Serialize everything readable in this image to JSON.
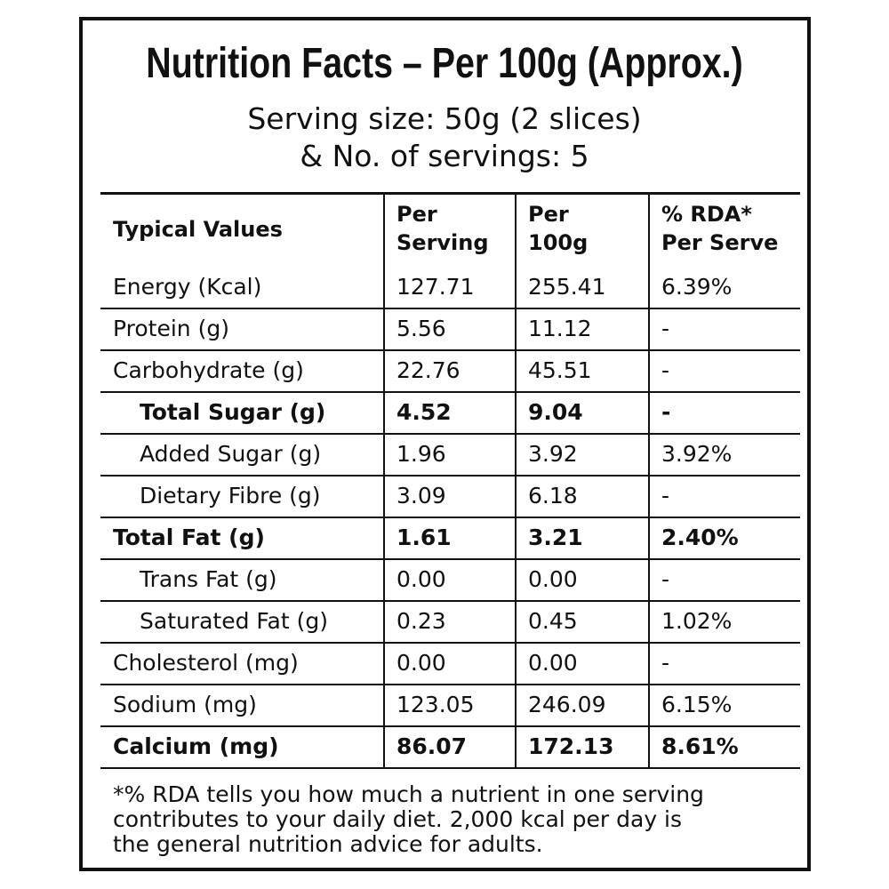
{
  "header": {
    "title": "Nutrition Facts – Per 100g (Approx.)",
    "serving_lines": [
      "Serving size: 50g (2 slices)",
      "& No. of servings: 5"
    ]
  },
  "table": {
    "columns": [
      [
        "Typical Values"
      ],
      [
        "Per",
        "Serving"
      ],
      [
        "Per",
        "100g"
      ],
      [
        "% RDA*",
        "Per Serve"
      ]
    ],
    "rows": [
      [
        "Energy (Kcal)",
        "127.71",
        "255.41",
        "6.39%"
      ],
      [
        "Protein (g)",
        "5.56",
        "11.12",
        "-"
      ],
      [
        "Carbohydrate (g)",
        "22.76",
        "45.51",
        "-"
      ],
      [
        "Total Sugar (g)",
        "4.52",
        "9.04",
        "-"
      ],
      [
        "Added Sugar (g)",
        "1.96",
        "3.92",
        "3.92%"
      ],
      [
        "Dietary Fibre (g)",
        "3.09",
        "6.18",
        "-"
      ],
      [
        "Total Fat (g)",
        "1.61",
        "3.21",
        "2.40%"
      ],
      [
        "Trans Fat (g)",
        "0.00",
        "0.00",
        "-"
      ],
      [
        "Saturated Fat (g)",
        "0.23",
        "0.45",
        "1.02%"
      ],
      [
        "Cholesterol (mg)",
        "0.00",
        "0.00",
        "-"
      ],
      [
        "Sodium (mg)",
        "123.05",
        "246.09",
        "6.15%"
      ],
      [
        "Calcium (mg)",
        "86.07",
        "172.13",
        "8.61%"
      ]
    ]
  },
  "footnote": [
    "*% RDA tells you how much a nutrient in one serving",
    "contributes to your daily diet. 2,000 kcal per day is",
    "the general nutrition advice for adults."
  ]
}
